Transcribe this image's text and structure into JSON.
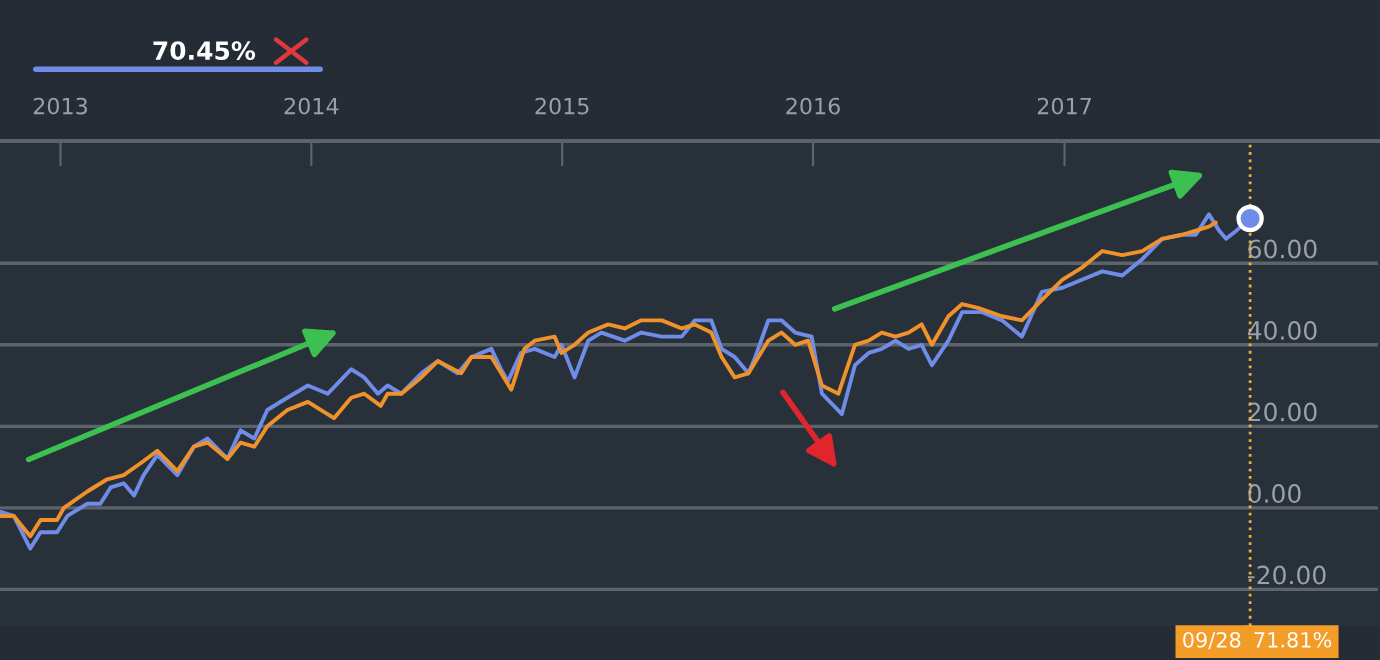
{
  "chart_data": {
    "type": "line",
    "annotations": [
      "70.45%",
      "71.81%"
    ],
    "series": [
      {
        "color": "#6f8ce8",
        "x": [
          "2012-10-06",
          "2012-10-25",
          "2012-11-18",
          "2012-12-03",
          "2012-12-27",
          "2013-01-11",
          "2013-02-09",
          "2013-02-28",
          "2013-03-15",
          "2013-04-03",
          "2013-04-18",
          "2013-05-02",
          "2013-05-22",
          "2013-06-20",
          "2013-07-14",
          "2013-08-03",
          "2013-09-01",
          "2013-09-20",
          "2013-10-10",
          "2013-10-29",
          "2013-11-27",
          "2013-12-27",
          "2014-01-25",
          "2014-02-28",
          "2014-03-19",
          "2014-04-08",
          "2014-04-22",
          "2014-05-12",
          "2014-06-10",
          "2014-07-04",
          "2014-08-02",
          "2014-08-22",
          "2014-09-20",
          "2014-10-04",
          "2014-10-14",
          "2014-11-02",
          "2014-11-22",
          "2014-12-21",
          "2014-12-31",
          "2015-01-19",
          "2015-02-08",
          "2015-02-27",
          "2015-04-02",
          "2015-04-26",
          "2015-05-26",
          "2015-06-24",
          "2015-07-13",
          "2015-08-06",
          "2015-08-21",
          "2015-09-09",
          "2015-09-29",
          "2015-10-09",
          "2015-10-28",
          "2015-11-16",
          "2015-12-06",
          "2015-12-30",
          "2016-01-14",
          "2016-02-12",
          "2016-03-02",
          "2016-03-22",
          "2016-04-10",
          "2016-04-30",
          "2016-05-19",
          "2016-06-07",
          "2016-06-22",
          "2016-07-16",
          "2016-08-05",
          "2016-09-03",
          "2016-10-02",
          "2016-10-31",
          "2016-11-29",
          "2016-12-29",
          "2017-01-27",
          "2017-02-25",
          "2017-03-26",
          "2017-04-24",
          "2017-05-23",
          "2017-06-21",
          "2017-07-11",
          "2017-07-30",
          "2017-08-14",
          "2017-08-24",
          "2017-09-08",
          "2017-09-28"
        ],
        "values": [
          -1,
          -2,
          -10,
          -6,
          -6,
          -2,
          1,
          1,
          5,
          6,
          3,
          8,
          13,
          8,
          15,
          17,
          12,
          19,
          17,
          24,
          27,
          30,
          28,
          34,
          32,
          28,
          30,
          28,
          33,
          36,
          33,
          37,
          39,
          34,
          31,
          38,
          39,
          37,
          40,
          32,
          41,
          43,
          41,
          43,
          42,
          42,
          46,
          46,
          39,
          37,
          33,
          37,
          46,
          46,
          43,
          42,
          28,
          23,
          35,
          38,
          39,
          41,
          39,
          40,
          35,
          41,
          48,
          48,
          46,
          42,
          53,
          54,
          56,
          58,
          57,
          61,
          66,
          67,
          67,
          72,
          68,
          66,
          68,
          71
        ]
      },
      {
        "color": "#f0922b",
        "x": [
          "2012-10-06",
          "2012-10-25",
          "2012-11-18",
          "2012-12-03",
          "2012-12-27",
          "2013-01-06",
          "2013-02-09",
          "2013-03-10",
          "2013-04-03",
          "2013-04-28",
          "2013-05-22",
          "2013-06-20",
          "2013-07-14",
          "2013-08-03",
          "2013-09-01",
          "2013-09-20",
          "2013-10-10",
          "2013-10-29",
          "2013-11-27",
          "2013-12-27",
          "2014-02-03",
          "2014-02-28",
          "2014-03-19",
          "2014-04-12",
          "2014-04-22",
          "2014-05-12",
          "2014-06-10",
          "2014-07-04",
          "2014-08-07",
          "2014-08-22",
          "2014-09-20",
          "2014-10-19",
          "2014-11-07",
          "2014-11-22",
          "2014-12-21",
          "2014-12-31",
          "2015-01-19",
          "2015-02-08",
          "2015-03-09",
          "2015-04-02",
          "2015-04-26",
          "2015-05-26",
          "2015-06-24",
          "2015-07-13",
          "2015-08-06",
          "2015-08-21",
          "2015-09-09",
          "2015-09-29",
          "2015-10-28",
          "2015-11-16",
          "2015-12-06",
          "2015-12-25",
          "2016-01-14",
          "2016-02-07",
          "2016-03-02",
          "2016-03-22",
          "2016-04-10",
          "2016-04-30",
          "2016-05-19",
          "2016-06-07",
          "2016-06-22",
          "2016-07-16",
          "2016-08-05",
          "2016-08-29",
          "2016-10-02",
          "2016-10-31",
          "2016-11-29",
          "2016-12-29",
          "2017-01-27",
          "2017-02-25",
          "2017-03-26",
          "2017-04-24",
          "2017-05-23",
          "2017-06-21",
          "2017-07-11",
          "2017-07-30",
          "2017-08-09"
        ],
        "values": [
          -2,
          -2,
          -7,
          -3,
          -3,
          0,
          4,
          7,
          8,
          11,
          14,
          9,
          15,
          16,
          12,
          16,
          15,
          20,
          24,
          26,
          22,
          27,
          28,
          25,
          28,
          28,
          32,
          36,
          33,
          37,
          37,
          29,
          39,
          41,
          42,
          38,
          40,
          43,
          45,
          44,
          46,
          46,
          44,
          45,
          43,
          37,
          32,
          33,
          41,
          43,
          40,
          41,
          30,
          28,
          40,
          41,
          43,
          42,
          43,
          45,
          40,
          47,
          50,
          49,
          47,
          46,
          51,
          56,
          59,
          63,
          62,
          63,
          66,
          67,
          68,
          69,
          70
        ]
      },
      {
        "type": "scatter",
        "marker": "circle",
        "color": "#6f8ce8",
        "x": [
          "2017-09-28"
        ],
        "values": [
          71
        ]
      }
    ],
    "xlim": [
      "2012-10-05",
      "2018-04-05"
    ],
    "xticks": [
      "2013",
      "2014",
      "2015",
      "2016",
      "2017"
    ],
    "ylim": [
      -29,
      90
    ],
    "yticks": [
      {
        "value": -20,
        "label": "-20.00"
      },
      {
        "value": 0,
        "label": "0.00"
      },
      {
        "value": 20,
        "label": "20.00"
      },
      {
        "value": 40,
        "label": "40.00"
      },
      {
        "value": 60,
        "label": "60.00"
      }
    ],
    "grid": "y",
    "ref_lines": [
      {
        "axis": "x",
        "value": "2017-09-28",
        "label": "09/28",
        "color": "#e8b040",
        "line_style": "dotted"
      }
    ]
  }
}
